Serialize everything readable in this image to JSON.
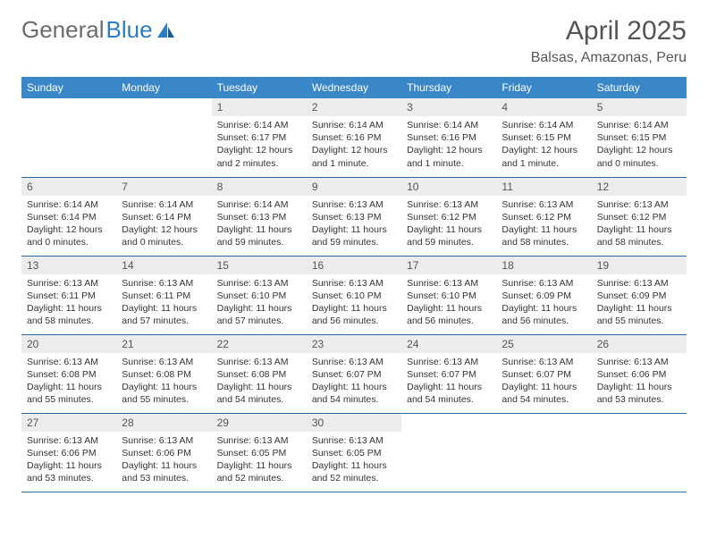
{
  "brand": {
    "name1": "General",
    "name2": "Blue",
    "color1": "#6b6b6b",
    "color2": "#2f7bbf"
  },
  "title": "April 2025",
  "location": "Balsas, Amazonas, Peru",
  "header_bg": "#3a87c7",
  "daynum_bg": "#ececec",
  "row_border": "#2f6aa0",
  "weekdays": [
    "Sunday",
    "Monday",
    "Tuesday",
    "Wednesday",
    "Thursday",
    "Friday",
    "Saturday"
  ],
  "weeks": [
    [
      {
        "n": "",
        "sr": "",
        "ss": "",
        "dl": ""
      },
      {
        "n": "",
        "sr": "",
        "ss": "",
        "dl": ""
      },
      {
        "n": "1",
        "sr": "Sunrise: 6:14 AM",
        "ss": "Sunset: 6:17 PM",
        "dl": "Daylight: 12 hours and 2 minutes."
      },
      {
        "n": "2",
        "sr": "Sunrise: 6:14 AM",
        "ss": "Sunset: 6:16 PM",
        "dl": "Daylight: 12 hours and 1 minute."
      },
      {
        "n": "3",
        "sr": "Sunrise: 6:14 AM",
        "ss": "Sunset: 6:16 PM",
        "dl": "Daylight: 12 hours and 1 minute."
      },
      {
        "n": "4",
        "sr": "Sunrise: 6:14 AM",
        "ss": "Sunset: 6:15 PM",
        "dl": "Daylight: 12 hours and 1 minute."
      },
      {
        "n": "5",
        "sr": "Sunrise: 6:14 AM",
        "ss": "Sunset: 6:15 PM",
        "dl": "Daylight: 12 hours and 0 minutes."
      }
    ],
    [
      {
        "n": "6",
        "sr": "Sunrise: 6:14 AM",
        "ss": "Sunset: 6:14 PM",
        "dl": "Daylight: 12 hours and 0 minutes."
      },
      {
        "n": "7",
        "sr": "Sunrise: 6:14 AM",
        "ss": "Sunset: 6:14 PM",
        "dl": "Daylight: 12 hours and 0 minutes."
      },
      {
        "n": "8",
        "sr": "Sunrise: 6:14 AM",
        "ss": "Sunset: 6:13 PM",
        "dl": "Daylight: 11 hours and 59 minutes."
      },
      {
        "n": "9",
        "sr": "Sunrise: 6:13 AM",
        "ss": "Sunset: 6:13 PM",
        "dl": "Daylight: 11 hours and 59 minutes."
      },
      {
        "n": "10",
        "sr": "Sunrise: 6:13 AM",
        "ss": "Sunset: 6:12 PM",
        "dl": "Daylight: 11 hours and 59 minutes."
      },
      {
        "n": "11",
        "sr": "Sunrise: 6:13 AM",
        "ss": "Sunset: 6:12 PM",
        "dl": "Daylight: 11 hours and 58 minutes."
      },
      {
        "n": "12",
        "sr": "Sunrise: 6:13 AM",
        "ss": "Sunset: 6:12 PM",
        "dl": "Daylight: 11 hours and 58 minutes."
      }
    ],
    [
      {
        "n": "13",
        "sr": "Sunrise: 6:13 AM",
        "ss": "Sunset: 6:11 PM",
        "dl": "Daylight: 11 hours and 58 minutes."
      },
      {
        "n": "14",
        "sr": "Sunrise: 6:13 AM",
        "ss": "Sunset: 6:11 PM",
        "dl": "Daylight: 11 hours and 57 minutes."
      },
      {
        "n": "15",
        "sr": "Sunrise: 6:13 AM",
        "ss": "Sunset: 6:10 PM",
        "dl": "Daylight: 11 hours and 57 minutes."
      },
      {
        "n": "16",
        "sr": "Sunrise: 6:13 AM",
        "ss": "Sunset: 6:10 PM",
        "dl": "Daylight: 11 hours and 56 minutes."
      },
      {
        "n": "17",
        "sr": "Sunrise: 6:13 AM",
        "ss": "Sunset: 6:10 PM",
        "dl": "Daylight: 11 hours and 56 minutes."
      },
      {
        "n": "18",
        "sr": "Sunrise: 6:13 AM",
        "ss": "Sunset: 6:09 PM",
        "dl": "Daylight: 11 hours and 56 minutes."
      },
      {
        "n": "19",
        "sr": "Sunrise: 6:13 AM",
        "ss": "Sunset: 6:09 PM",
        "dl": "Daylight: 11 hours and 55 minutes."
      }
    ],
    [
      {
        "n": "20",
        "sr": "Sunrise: 6:13 AM",
        "ss": "Sunset: 6:08 PM",
        "dl": "Daylight: 11 hours and 55 minutes."
      },
      {
        "n": "21",
        "sr": "Sunrise: 6:13 AM",
        "ss": "Sunset: 6:08 PM",
        "dl": "Daylight: 11 hours and 55 minutes."
      },
      {
        "n": "22",
        "sr": "Sunrise: 6:13 AM",
        "ss": "Sunset: 6:08 PM",
        "dl": "Daylight: 11 hours and 54 minutes."
      },
      {
        "n": "23",
        "sr": "Sunrise: 6:13 AM",
        "ss": "Sunset: 6:07 PM",
        "dl": "Daylight: 11 hours and 54 minutes."
      },
      {
        "n": "24",
        "sr": "Sunrise: 6:13 AM",
        "ss": "Sunset: 6:07 PM",
        "dl": "Daylight: 11 hours and 54 minutes."
      },
      {
        "n": "25",
        "sr": "Sunrise: 6:13 AM",
        "ss": "Sunset: 6:07 PM",
        "dl": "Daylight: 11 hours and 54 minutes."
      },
      {
        "n": "26",
        "sr": "Sunrise: 6:13 AM",
        "ss": "Sunset: 6:06 PM",
        "dl": "Daylight: 11 hours and 53 minutes."
      }
    ],
    [
      {
        "n": "27",
        "sr": "Sunrise: 6:13 AM",
        "ss": "Sunset: 6:06 PM",
        "dl": "Daylight: 11 hours and 53 minutes."
      },
      {
        "n": "28",
        "sr": "Sunrise: 6:13 AM",
        "ss": "Sunset: 6:06 PM",
        "dl": "Daylight: 11 hours and 53 minutes."
      },
      {
        "n": "29",
        "sr": "Sunrise: 6:13 AM",
        "ss": "Sunset: 6:05 PM",
        "dl": "Daylight: 11 hours and 52 minutes."
      },
      {
        "n": "30",
        "sr": "Sunrise: 6:13 AM",
        "ss": "Sunset: 6:05 PM",
        "dl": "Daylight: 11 hours and 52 minutes."
      },
      {
        "n": "",
        "sr": "",
        "ss": "",
        "dl": ""
      },
      {
        "n": "",
        "sr": "",
        "ss": "",
        "dl": ""
      },
      {
        "n": "",
        "sr": "",
        "ss": "",
        "dl": ""
      }
    ]
  ]
}
